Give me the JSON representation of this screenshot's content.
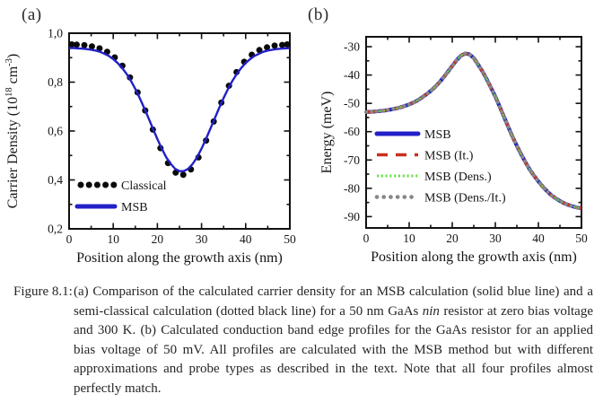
{
  "figure": {
    "panel_a_label": "(a)",
    "panel_b_label": "(b)"
  },
  "caption": {
    "label": "Figure 8.1:",
    "segments": [
      {
        "text": "(a) Comparison of the calculated carrier density for an MSB calculation (solid blue line) and a semi-classical calculation (dotted black line) for a 50 nm GaAs "
      },
      {
        "text": "nin",
        "italic": true
      },
      {
        "text": " resistor at zero bias voltage and 300 K. (b) Calculated conduction band edge profiles for the GaAs resistor for an applied bias voltage of 50 mV. All profiles are calculated with the MSB method but with different approximations and probe types as described in the text. Note that all four profiles almost perfectly match."
      }
    ]
  },
  "chart_data": [
    {
      "panel": "a",
      "type": "scatter+line",
      "xlabel": "Position along the growth axis (nm)",
      "ylabel_segments": [
        {
          "text": "Carrier Density (10"
        },
        {
          "text": "18",
          "super": true
        },
        {
          "text": " cm"
        },
        {
          "text": "-3",
          "super": true
        },
        {
          "text": ")"
        }
      ],
      "xlim": [
        0,
        50
      ],
      "ylim": [
        0.2,
        1.0
      ],
      "xticks": [
        {
          "v": 0,
          "label": "0"
        },
        {
          "v": 10,
          "label": "10"
        },
        {
          "v": 20,
          "label": "20"
        },
        {
          "v": 30,
          "label": "30"
        },
        {
          "v": 40,
          "label": "40"
        },
        {
          "v": 50,
          "label": "50"
        }
      ],
      "xminor": [
        5,
        15,
        25,
        35,
        45
      ],
      "yticks": [
        {
          "v": 0.2,
          "label": "0,2"
        },
        {
          "v": 0.4,
          "label": "0,4"
        },
        {
          "v": 0.6,
          "label": "0,6"
        },
        {
          "v": 0.8,
          "label": "0,8"
        },
        {
          "v": 1.0,
          "label": "1,0"
        }
      ],
      "yminor": [
        0.3,
        0.5,
        0.7,
        0.9
      ],
      "legend_position": "inside-lower-left",
      "grid": false,
      "series": [
        {
          "name": "Classical",
          "style": "dots",
          "color": "#0a0a0a",
          "x": [
            0,
            1.72,
            3.45,
            5.17,
            6.9,
            8.62,
            10.34,
            12.07,
            13.79,
            15.52,
            17.24,
            18.97,
            20.69,
            22.41,
            24.14,
            25.86,
            27.59,
            29.31,
            31.03,
            32.76,
            34.48,
            36.21,
            37.93,
            39.66,
            41.38,
            43.1,
            44.83,
            46.55,
            48.28,
            50
          ],
          "y": [
            0.954,
            0.953,
            0.951,
            0.946,
            0.938,
            0.924,
            0.901,
            0.867,
            0.819,
            0.758,
            0.684,
            0.606,
            0.53,
            0.469,
            0.43,
            0.421,
            0.443,
            0.492,
            0.561,
            0.639,
            0.716,
            0.785,
            0.841,
            0.883,
            0.912,
            0.931,
            0.942,
            0.949,
            0.952,
            0.954
          ]
        },
        {
          "name": "MSB",
          "style": "solid",
          "color": "#2320c8",
          "x": [
            0,
            1,
            2,
            3,
            4,
            5,
            6,
            7,
            8,
            9,
            10,
            11,
            12,
            13,
            14,
            15,
            16,
            17,
            18,
            19,
            20,
            21,
            22,
            23,
            24,
            25,
            26,
            27,
            28,
            29,
            30,
            31,
            32,
            33,
            34,
            35,
            36,
            37,
            38,
            39,
            40,
            41,
            42,
            43,
            44,
            45,
            46,
            47,
            48,
            49,
            50
          ],
          "y": [
            0.939,
            0.939,
            0.938,
            0.937,
            0.935,
            0.932,
            0.929,
            0.924,
            0.916,
            0.907,
            0.894,
            0.878,
            0.858,
            0.834,
            0.805,
            0.772,
            0.735,
            0.695,
            0.652,
            0.609,
            0.567,
            0.528,
            0.493,
            0.466,
            0.446,
            0.436,
            0.436,
            0.446,
            0.466,
            0.493,
            0.528,
            0.567,
            0.609,
            0.652,
            0.695,
            0.735,
            0.772,
            0.805,
            0.834,
            0.858,
            0.878,
            0.894,
            0.907,
            0.916,
            0.924,
            0.929,
            0.932,
            0.935,
            0.937,
            0.938,
            0.939
          ]
        }
      ]
    },
    {
      "panel": "b",
      "type": "line",
      "xlabel": "Position along the growth axis (nm)",
      "ylabel_segments": [
        {
          "text": "Energy (meV)"
        }
      ],
      "xlim": [
        0,
        50
      ],
      "ylim": [
        -94,
        -26.5
      ],
      "xticks": [
        {
          "v": 0,
          "label": "0"
        },
        {
          "v": 10,
          "label": "10"
        },
        {
          "v": 20,
          "label": "20"
        },
        {
          "v": 30,
          "label": "30"
        },
        {
          "v": 40,
          "label": "40"
        },
        {
          "v": 50,
          "label": "50"
        }
      ],
      "xminor": [
        5,
        15,
        25,
        35,
        45
      ],
      "yticks": [
        {
          "v": -90,
          "label": "-90"
        },
        {
          "v": -80,
          "label": "-80"
        },
        {
          "v": -70,
          "label": "-70"
        },
        {
          "v": -60,
          "label": "-60"
        },
        {
          "v": -50,
          "label": "-50"
        },
        {
          "v": -40,
          "label": "-40"
        },
        {
          "v": -30,
          "label": "-30"
        }
      ],
      "yminor": [
        -85,
        -75,
        -65,
        -55,
        -45,
        -35
      ],
      "legend_position": "inside-middle-left",
      "grid": false,
      "profile": {
        "x": [
          0,
          1,
          2,
          3,
          4,
          5,
          6,
          7,
          8,
          9,
          10,
          11,
          12,
          13,
          14,
          15,
          16,
          17,
          18,
          19,
          20,
          21,
          22,
          23,
          24,
          25,
          26,
          27,
          28,
          29,
          30,
          31,
          32,
          33,
          34,
          35,
          36,
          37,
          38,
          39,
          40,
          41,
          42,
          43,
          44,
          45,
          46,
          47,
          48,
          49,
          50
        ],
        "y": [
          -53.1,
          -53.0,
          -52.9,
          -52.75,
          -52.6,
          -52.4,
          -52.1,
          -51.8,
          -51.4,
          -50.9,
          -50.4,
          -49.7,
          -48.9,
          -47.9,
          -46.8,
          -45.6,
          -44.2,
          -42.6,
          -40.8,
          -38.8,
          -36.8,
          -34.8,
          -33.2,
          -32.4,
          -32.7,
          -34.0,
          -36.3,
          -38.7,
          -41.5,
          -44.5,
          -47.6,
          -51.1,
          -54.7,
          -58.3,
          -61.8,
          -65.0,
          -68.0,
          -70.8,
          -73.4,
          -75.6,
          -77.6,
          -79.4,
          -81.0,
          -82.4,
          -83.5,
          -84.5,
          -85.3,
          -85.9,
          -86.4,
          -86.8,
          -87.0
        ]
      },
      "series": [
        {
          "name": "MSB",
          "style": "solid",
          "color": "#2320c8",
          "use": "profile"
        },
        {
          "name": "MSB (It.)",
          "style": "dashed",
          "color": "#c9301f",
          "use": "profile"
        },
        {
          "name": "MSB (Dens.)",
          "style": "dotted",
          "color": "#5fe23f",
          "use": "profile"
        },
        {
          "name": "MSB (Dens./It.)",
          "style": "dot-round",
          "color": "#878787",
          "use": "profile"
        }
      ]
    }
  ]
}
